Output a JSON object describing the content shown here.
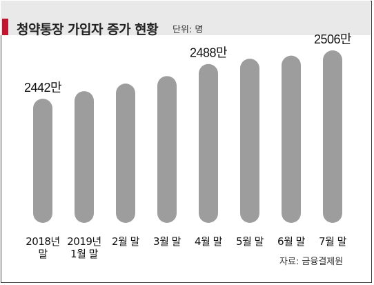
{
  "title": "청약통장 가입자 증가 현황",
  "unit": "단위: 명",
  "source": "자료: 금융결제원",
  "colors": {
    "bar": "#9d9d9d",
    "accent": "#c0142f",
    "header_bg": "#e9e9e9"
  },
  "chart_data": {
    "type": "bar",
    "categories": [
      [
        "2018년",
        "말"
      ],
      [
        "2019년",
        "1월 말"
      ],
      [
        "2월 말"
      ],
      [
        "3월 말"
      ],
      [
        "4월 말"
      ],
      [
        "5월 말"
      ],
      [
        "6월 말"
      ],
      [
        "7월 말"
      ]
    ],
    "values": [
      2442,
      2452,
      2462,
      2472,
      2488,
      2495,
      2499,
      2506
    ],
    "value_unit": "만",
    "data_labels": [
      {
        "index": 0,
        "text": "2442만"
      },
      {
        "index": 4,
        "text": "2488만"
      },
      {
        "index": 7,
        "text": "2506만"
      }
    ],
    "grid": false,
    "legend": "none"
  }
}
